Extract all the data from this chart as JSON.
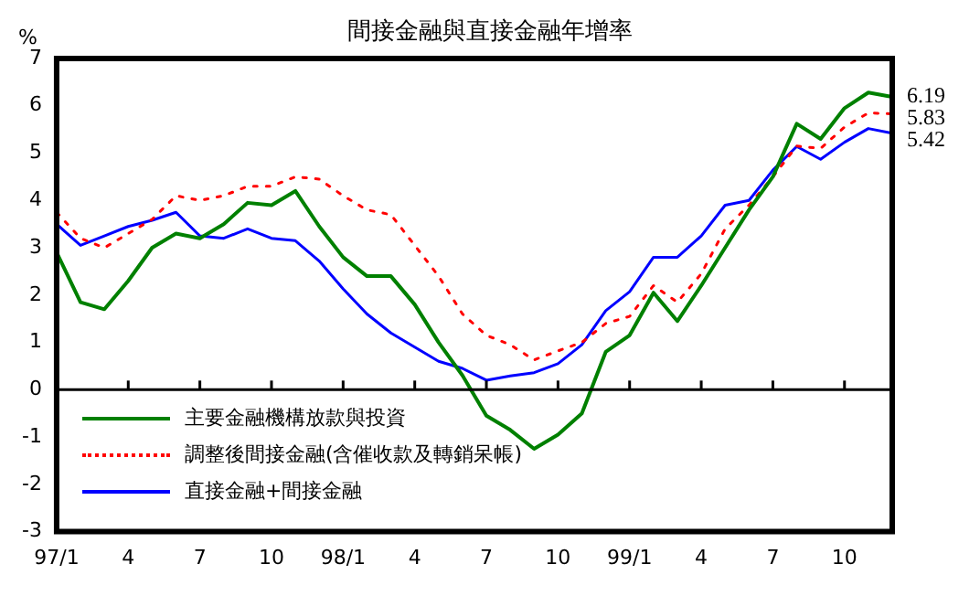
{
  "chart_data": {
    "type": "line",
    "title": "間接金融與直接金融年增率",
    "ylabel": "%",
    "categories": [
      "97/1",
      null,
      null,
      "4",
      null,
      null,
      "7",
      null,
      null,
      "10",
      null,
      null,
      "98/1",
      null,
      null,
      "4",
      null,
      null,
      "7",
      null,
      null,
      "10",
      null,
      null,
      "99/1",
      null,
      null,
      "4",
      null,
      null,
      "7",
      null,
      null,
      "10",
      null,
      null
    ],
    "series": [
      {
        "name": "主要金融機構放款與投資",
        "color": "#008000",
        "line_style": "solid",
        "values": [
          2.9,
          1.85,
          1.7,
          2.3,
          3.0,
          3.3,
          3.2,
          3.5,
          3.95,
          3.9,
          4.2,
          3.45,
          2.8,
          2.4,
          2.4,
          1.8,
          1.0,
          0.3,
          -0.55,
          -0.85,
          -1.25,
          -0.95,
          -0.5,
          0.8,
          1.15,
          2.05,
          1.45,
          2.2,
          3.0,
          3.8,
          4.5,
          5.62,
          5.3,
          5.95,
          6.28,
          6.19
        ],
        "value_labels": [
          null,
          null,
          null,
          null,
          null,
          null,
          null,
          null,
          null,
          null,
          null,
          null,
          null,
          null,
          null,
          null,
          null,
          null,
          null,
          null,
          null,
          null,
          null,
          null,
          null,
          null,
          null,
          null,
          null,
          null,
          null,
          null,
          null,
          null,
          null,
          "6.19"
        ]
      },
      {
        "name": "調整後間接金融(含催收款及轉銷呆帳)",
        "color": "#ff0000",
        "line_style": "dotted",
        "values": [
          3.75,
          3.2,
          3.0,
          3.3,
          3.6,
          4.1,
          4.0,
          4.1,
          4.3,
          4.3,
          4.5,
          4.45,
          4.1,
          3.8,
          3.7,
          3.05,
          2.4,
          1.6,
          1.15,
          0.95,
          0.63,
          0.82,
          1.0,
          1.4,
          1.55,
          2.2,
          1.85,
          2.45,
          3.4,
          3.9,
          4.5,
          5.15,
          5.1,
          5.55,
          5.85,
          5.83
        ],
        "value_labels": [
          null,
          null,
          null,
          null,
          null,
          null,
          null,
          null,
          null,
          null,
          null,
          null,
          null,
          null,
          null,
          null,
          null,
          null,
          null,
          null,
          null,
          null,
          null,
          null,
          null,
          null,
          null,
          null,
          null,
          null,
          null,
          null,
          null,
          null,
          null,
          "5.83"
        ]
      },
      {
        "name": "直接金融+間接金融",
        "color": "#0000ff",
        "line_style": "solid",
        "values": [
          3.5,
          3.05,
          3.25,
          3.45,
          3.58,
          3.75,
          3.25,
          3.2,
          3.4,
          3.2,
          3.15,
          2.72,
          2.13,
          1.6,
          1.2,
          0.9,
          0.6,
          0.45,
          0.2,
          0.29,
          0.36,
          0.55,
          0.95,
          1.67,
          2.07,
          2.8,
          2.8,
          3.25,
          3.9,
          4.0,
          4.64,
          5.14,
          4.87,
          5.23,
          5.52,
          5.42
        ],
        "value_labels": [
          null,
          null,
          null,
          null,
          null,
          null,
          null,
          null,
          null,
          null,
          null,
          null,
          null,
          null,
          null,
          null,
          null,
          null,
          null,
          null,
          null,
          null,
          null,
          null,
          null,
          null,
          null,
          null,
          null,
          null,
          null,
          null,
          null,
          null,
          null,
          "5.42"
        ]
      }
    ],
    "ylim": [
      -3,
      7
    ],
    "yticks": [
      -3,
      -2,
      -1,
      0,
      1,
      2,
      3,
      4,
      5,
      6,
      7
    ],
    "grid": false,
    "ref_lines": [
      {
        "axis": "y",
        "value": 0,
        "color": "#000000"
      }
    ],
    "legend": "bottom left",
    "marker": "none"
  }
}
